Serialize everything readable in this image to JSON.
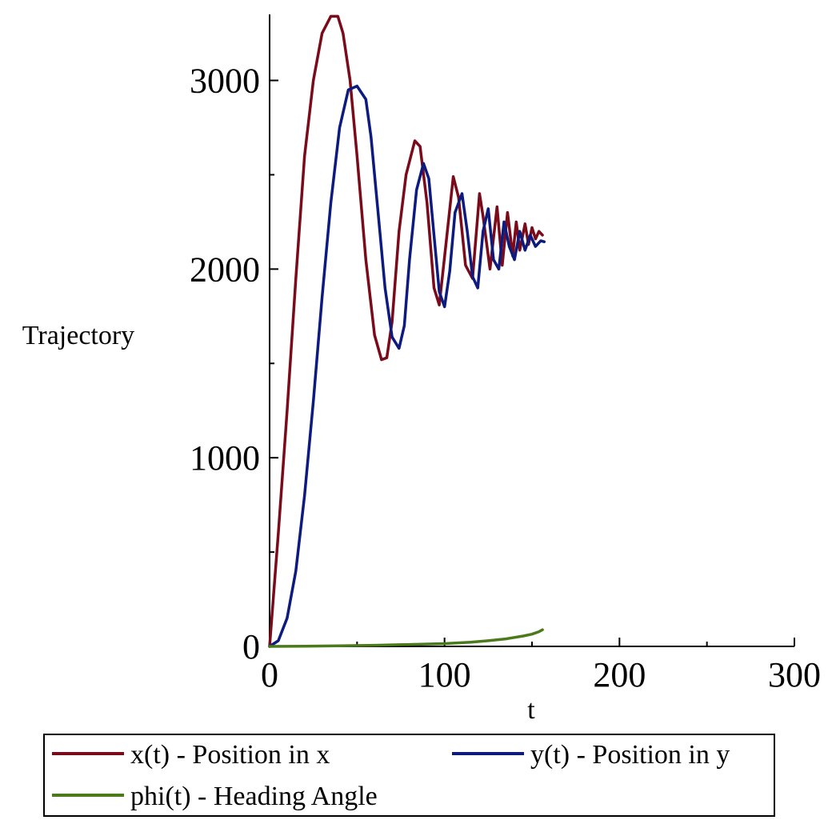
{
  "chart_data": {
    "type": "line",
    "xlabel": "t",
    "ylabel": "Trajectory",
    "xlim": [
      0,
      300
    ],
    "ylim": [
      0,
      3350
    ],
    "x_ticks": [
      0,
      100,
      200,
      300
    ],
    "y_ticks": [
      0,
      1000,
      2000,
      3000
    ],
    "x_tick_labels": [
      "0",
      "100",
      "200",
      "300"
    ],
    "y_tick_labels": [
      "0",
      "1000",
      "2000",
      "3000"
    ],
    "grid": false,
    "legend_position": "bottom",
    "series": [
      {
        "name": "x(t) - Position in x",
        "color": "#7a0b1b",
        "x": [
          0,
          5,
          10,
          15,
          20,
          25,
          30,
          35,
          39,
          42,
          46,
          50,
          55,
          60,
          64,
          67,
          70,
          74,
          78,
          83,
          86,
          90,
          94,
          97,
          101,
          105,
          108,
          112,
          116,
          120,
          122,
          126,
          130,
          133,
          136,
          139,
          141,
          143,
          146,
          148,
          150,
          152,
          154,
          156
        ],
        "y": [
          0,
          600,
          1250,
          1950,
          2600,
          3000,
          3250,
          3340,
          3340,
          3250,
          3000,
          2600,
          2050,
          1650,
          1520,
          1530,
          1720,
          2200,
          2500,
          2680,
          2650,
          2350,
          1900,
          1810,
          2150,
          2490,
          2380,
          2020,
          1950,
          2400,
          2280,
          2000,
          2330,
          2020,
          2300,
          2070,
          2250,
          2100,
          2240,
          2130,
          2220,
          2160,
          2200,
          2180
        ]
      },
      {
        "name": "y(t) - Position in y",
        "color": "#0d1a7e",
        "x": [
          0,
          5,
          10,
          15,
          20,
          25,
          30,
          35,
          40,
          45,
          50,
          55,
          58,
          62,
          66,
          70,
          74,
          77,
          80,
          84,
          88,
          91,
          94,
          97,
          100,
          103,
          106,
          110,
          113,
          116,
          119,
          122,
          125,
          128,
          131,
          134,
          137,
          140,
          143,
          146,
          149,
          152,
          155,
          157
        ],
        "y": [
          0,
          30,
          150,
          400,
          800,
          1300,
          1850,
          2350,
          2750,
          2950,
          2970,
          2900,
          2700,
          2300,
          1900,
          1640,
          1580,
          1700,
          2050,
          2420,
          2560,
          2480,
          2180,
          1880,
          1800,
          1990,
          2300,
          2400,
          2200,
          1960,
          1900,
          2200,
          2320,
          2050,
          2000,
          2250,
          2120,
          2050,
          2200,
          2100,
          2180,
          2120,
          2150,
          2145
        ]
      },
      {
        "name": "phi(t) - Heading Angle",
        "color": "#4a7a1a",
        "x": [
          0,
          20,
          40,
          60,
          80,
          100,
          115,
          125,
          135,
          145,
          150,
          154,
          156
        ],
        "y": [
          0,
          1,
          3,
          6,
          10,
          15,
          22,
          30,
          40,
          55,
          65,
          78,
          88
        ]
      }
    ]
  }
}
